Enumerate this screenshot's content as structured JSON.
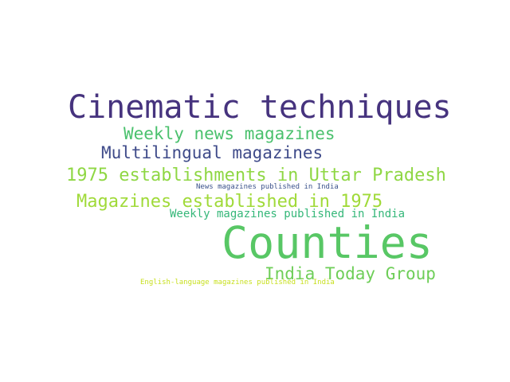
{
  "words": [
    {
      "text": "Cinematic techniques",
      "color": "#46337e"
    },
    {
      "text": "Weekly news magazines",
      "color": "#4ac16d"
    },
    {
      "text": "Multilingual magazines",
      "color": "#3e4a89"
    },
    {
      "text": "1975 establishments in Uttar Pradesh",
      "color": "#8fd744"
    },
    {
      "text": "Magazines established in 1975",
      "color": "#a0da39"
    },
    {
      "text": "News magazines published in India",
      "color": "#3b528b"
    },
    {
      "text": "Weekly magazines published in India",
      "color": "#35b779"
    },
    {
      "text": "Counties",
      "color": "#58c765"
    },
    {
      "text": "India Today Group",
      "color": "#6ece58"
    },
    {
      "text": "English-language magazines published in India",
      "color": "#c8e020"
    }
  ]
}
